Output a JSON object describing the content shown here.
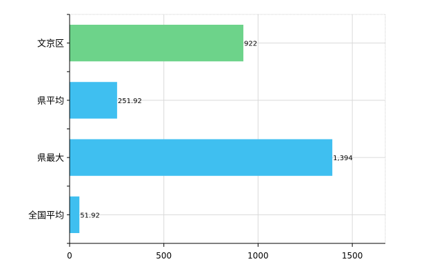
{
  "chart_data": {
    "type": "bar",
    "orientation": "horizontal",
    "categories": [
      "文京区",
      "県平均",
      "県最大",
      "全国平均"
    ],
    "values": [
      922,
      251.92,
      1394,
      51.92
    ],
    "value_labels": [
      "922",
      "251.92",
      "1,394",
      "51.92"
    ],
    "bar_colors": [
      "#6dd38a",
      "#3fbff0",
      "#3fbff0",
      "#3fbff0"
    ],
    "xlim": [
      0,
      1675
    ],
    "x_ticks": [
      0,
      500,
      1000,
      1500
    ],
    "grid": true,
    "legend": "none",
    "title": "",
    "xlabel": "",
    "ylabel": ""
  }
}
